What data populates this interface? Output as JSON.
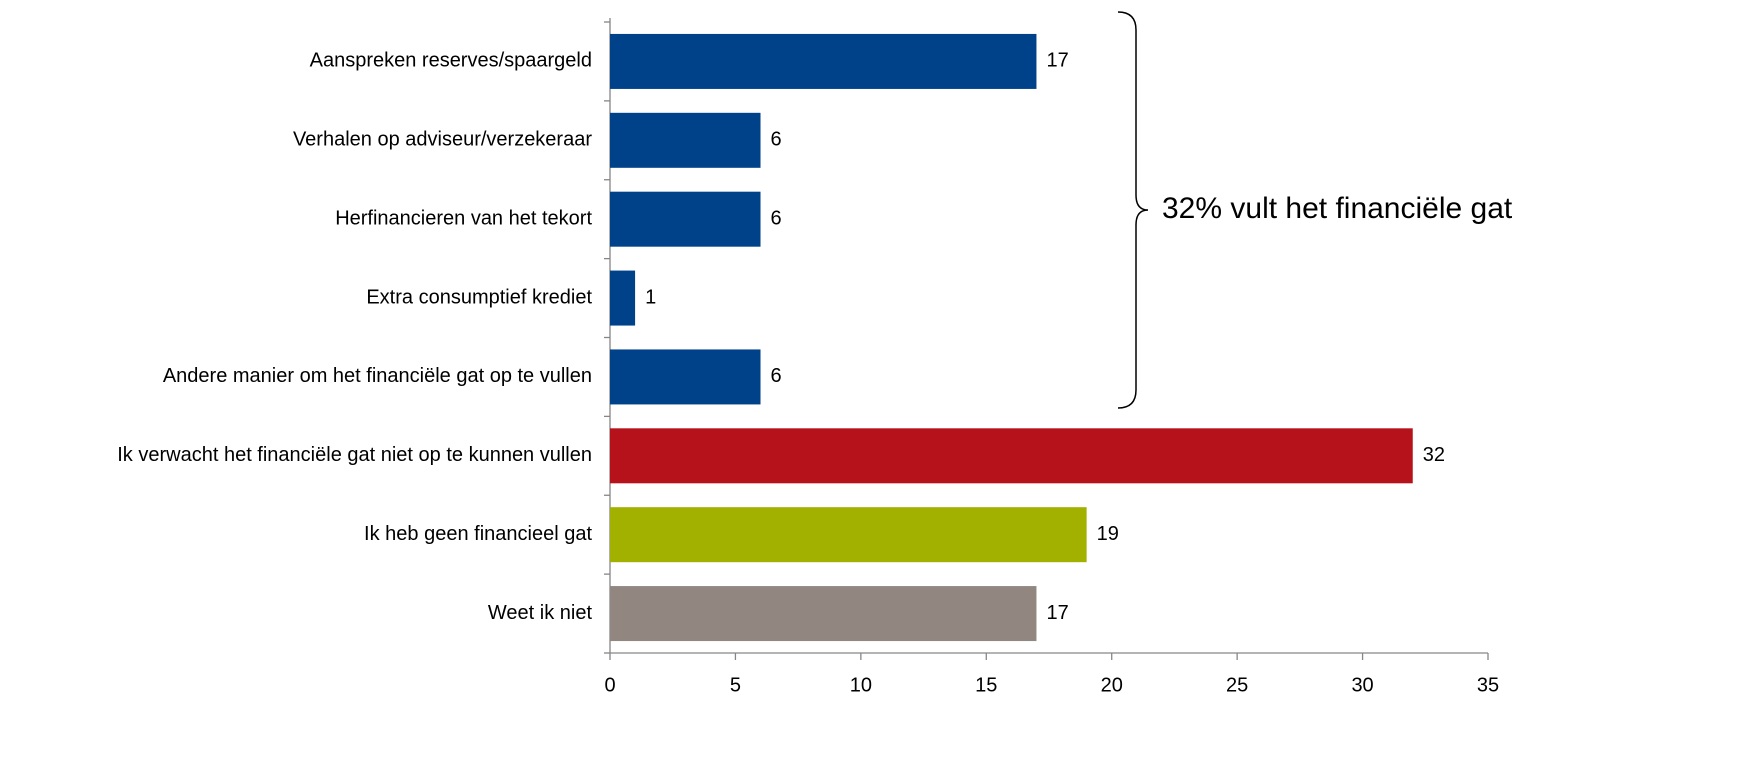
{
  "chart_data": {
    "type": "barh",
    "categories": [
      "Aanspreken reserves/spaargeld",
      "Verhalen op adviseur/verzekeraar",
      "Herfinancieren van het tekort",
      "Extra consumptief krediet",
      "Andere manier om het financiële gat op te vullen",
      "Ik verwacht het financiële gat niet op te kunnen vullen",
      "Ik heb geen financieel gat",
      "Weet ik niet"
    ],
    "values": [
      17,
      6,
      6,
      1,
      6,
      32,
      19,
      17
    ],
    "colors": [
      "#00428a",
      "#00428a",
      "#00428a",
      "#00428a",
      "#00428a",
      "#b5121b",
      "#a2b000",
      "#928680"
    ],
    "xlim": [
      0,
      35
    ],
    "xticks": [
      0,
      5,
      10,
      15,
      20,
      25,
      30,
      35
    ],
    "annotation": "32% vult het financiële gat",
    "grid": false
  }
}
